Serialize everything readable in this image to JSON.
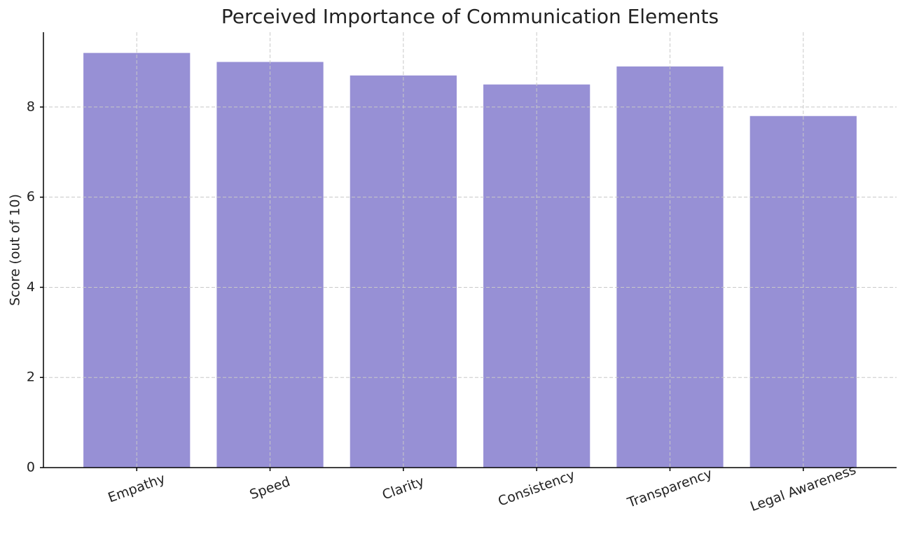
{
  "chart_data": {
    "type": "bar",
    "title": "Perceived Importance of Communication Elements",
    "ylabel": "Score (out of 10)",
    "categories": [
      "Empathy",
      "Speed",
      "Clarity",
      "Consistency",
      "Transparency",
      "Legal Awareness"
    ],
    "values": [
      9.2,
      9.0,
      8.7,
      8.5,
      8.9,
      7.8
    ],
    "color": "#9790d5",
    "ylim": [
      0,
      9.66
    ],
    "yticks": [
      0,
      2,
      4,
      6,
      8
    ],
    "grid": true
  }
}
